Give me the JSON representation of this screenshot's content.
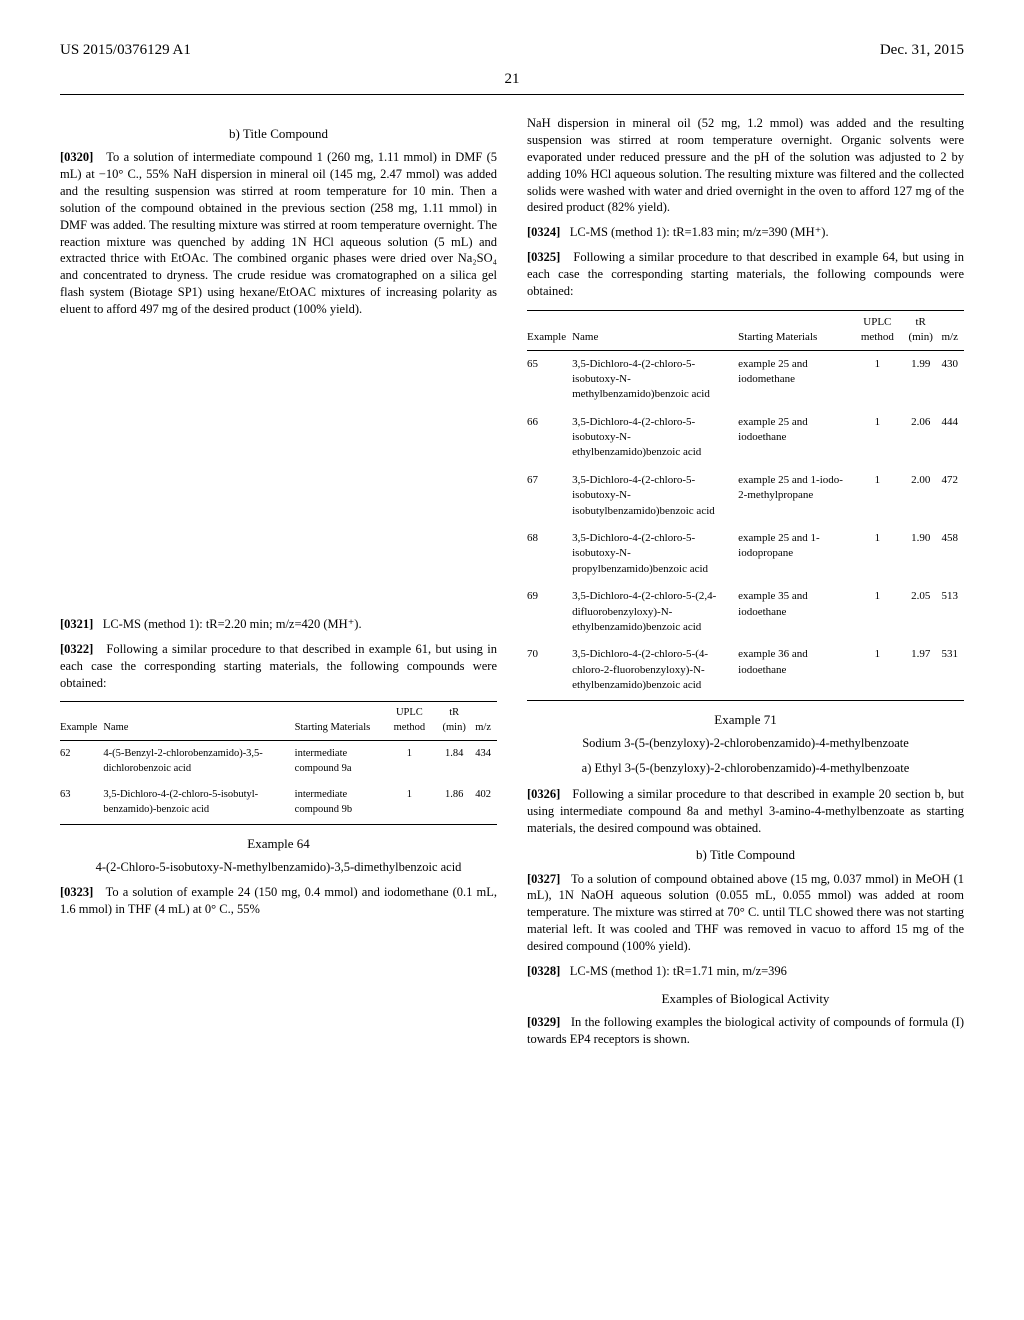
{
  "header": {
    "pub_number": "US 2015/0376129 A1",
    "date": "Dec. 31, 2015",
    "page_number": "21"
  },
  "left_col": {
    "title_b": "b) Title Compound",
    "para_0320_num": "[0320]",
    "para_0320": "To a solution of intermediate compound 1 (260 mg, 1.11 mmol) in DMF (5 mL) at −10° C., 55% NaH dispersion in mineral oil (145 mg, 2.47 mmol) was added and the resulting suspension was stirred at room temperature for 10 min. Then a solution of the compound obtained in the previous section (258 mg, 1.11 mmol) in DMF was added. The resulting mixture was stirred at room temperature overnight. The reaction mixture was quenched by adding 1N HCl aqueous solution (5 mL) and extracted thrice with EtOAc. The combined organic phases were dried over Na₂SO₄ and concentrated to dryness. The crude residue was cromatographed on a silica gel flash system (Biotage SP1) using hexane/EtOAC mixtures of increasing polarity as eluent to afford 497 mg of the desired product (100% yield).",
    "para_0321_num": "[0321]",
    "para_0321": "LC-MS (method 1): tR=2.20 min; m/z=420 (MH⁺).",
    "para_0322_num": "[0322]",
    "para_0322": "Following a similar procedure to that described in example 61, but using in each case the corresponding starting materials, the following compounds were obtained:",
    "table_small": {
      "columns": [
        "Example",
        "Name",
        "Starting Materials",
        "UPLC method",
        "tR (min)",
        "m/z"
      ],
      "rows": [
        [
          "62",
          "4-(5-Benzyl-2-chlorobenzamido)-3,5-dichlorobenzoic acid",
          "intermediate compound 9a",
          "1",
          "1.84",
          "434"
        ],
        [
          "63",
          "3,5-Dichloro-4-(2-chloro-5-isobutyl-benzamido)-benzoic acid",
          "intermediate compound 9b",
          "1",
          "1.86",
          "402"
        ]
      ]
    },
    "example_64_title": "Example 64",
    "example_64_name": "4-(2-Chloro-5-isobutoxy-N-methylbenzamido)-3,5-dimethylbenzoic acid",
    "para_0323_num": "[0323]",
    "para_0323": "To a solution of example 24 (150 mg, 0.4 mmol) and iodomethane (0.1 mL, 1.6 mmol) in THF (4 mL) at 0° C., 55%"
  },
  "right_col": {
    "para_top": "NaH dispersion in mineral oil (52 mg, 1.2 mmol) was added and the resulting suspension was stirred at room temperature overnight. Organic solvents were evaporated under reduced pressure and the pH of the solution was adjusted to 2 by adding 10% HCl aqueous solution. The resulting mixture was filtered and the collected solids were washed with water and dried overnight in the oven to afford 127 mg of the desired product (82% yield).",
    "para_0324_num": "[0324]",
    "para_0324": "LC-MS (method 1): tR=1.83 min; m/z=390 (MH⁺).",
    "para_0325_num": "[0325]",
    "para_0325": "Following a similar procedure to that described in example 64, but using in each case the corresponding starting materials, the following compounds were obtained:",
    "table_big": {
      "columns": [
        "Example",
        "Name",
        "Starting Materials",
        "UPLC method",
        "tR (min)",
        "m/z"
      ],
      "rows": [
        [
          "65",
          "3,5-Dichloro-4-(2-chloro-5-isobutoxy-N-methylbenzamido)benzoic acid",
          "example 25 and iodomethane",
          "1",
          "1.99",
          "430"
        ],
        [
          "66",
          "3,5-Dichloro-4-(2-chloro-5-isobutoxy-N-ethylbenzamido)benzoic acid",
          "example 25 and iodoethane",
          "1",
          "2.06",
          "444"
        ],
        [
          "67",
          "3,5-Dichloro-4-(2-chloro-5-isobutoxy-N-isobutylbenzamido)benzoic acid",
          "example 25 and 1-iodo-2-methylpropane",
          "1",
          "2.00",
          "472"
        ],
        [
          "68",
          "3,5-Dichloro-4-(2-chloro-5-isobutoxy-N-propylbenzamido)benzoic acid",
          "example 25 and 1-iodopropane",
          "1",
          "1.90",
          "458"
        ],
        [
          "69",
          "3,5-Dichloro-4-(2-chloro-5-(2,4-difluorobenzyloxy)-N-ethylbenzamido)benzoic acid",
          "example 35 and iodoethane",
          "1",
          "2.05",
          "513"
        ],
        [
          "70",
          "3,5-Dichloro-4-(2-chloro-5-(4-chloro-2-fluorobenzyloxy)-N-ethylbenzamido)benzoic acid",
          "example 36 and iodoethane",
          "1",
          "1.97",
          "531"
        ]
      ]
    },
    "example_71_title": "Example 71",
    "example_71_name": "Sodium 3-(5-(benzyloxy)-2-chlorobenzamido)-4-methylbenzoate",
    "example_71_a": "a) Ethyl 3-(5-(benzyloxy)-2-chlorobenzamido)-4-methylbenzoate",
    "para_0326_num": "[0326]",
    "para_0326": "Following a similar procedure to that described in example 20 section b, but using intermediate compound 8a and methyl 3-amino-4-methylbenzoate as starting materials, the desired compound was obtained.",
    "title_b2": "b) Title Compound",
    "para_0327_num": "[0327]",
    "para_0327": "To a solution of compound obtained above (15 mg, 0.037 mmol) in MeOH (1 mL), 1N NaOH aqueous solution (0.055 mL, 0.055 mmol) was added at room temperature. The mixture was stirred at 70° C. until TLC showed there was not starting material left. It was cooled and THF was removed in vacuo to afford 15 mg of the desired compound (100% yield).",
    "para_0328_num": "[0328]",
    "para_0328": "LC-MS (method 1): tR=1.71 min, m/z=396",
    "bio_title": "Examples of Biological Activity",
    "para_0329_num": "[0329]",
    "para_0329": "In the following examples the biological activity of compounds of formula (I) towards EP4 receptors is shown."
  }
}
